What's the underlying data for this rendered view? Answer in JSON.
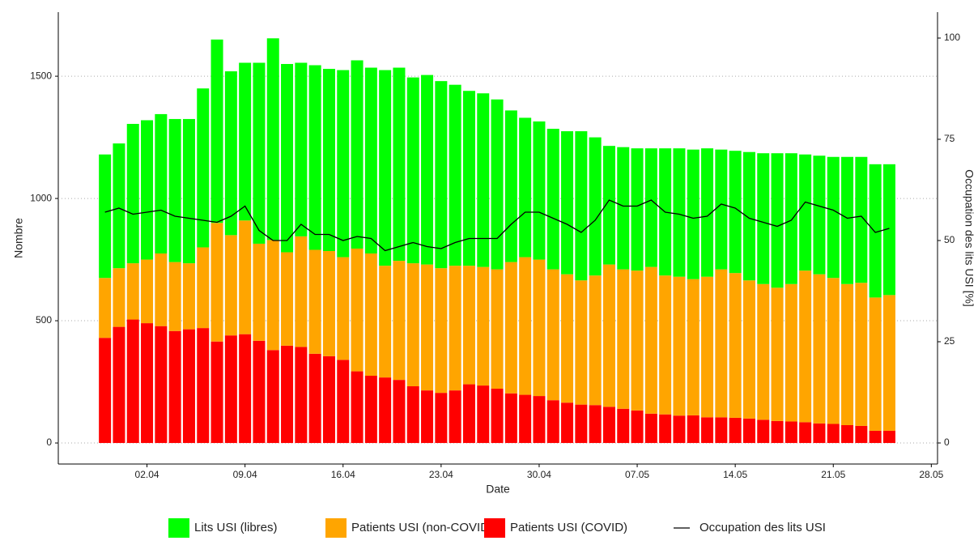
{
  "chart_data": {
    "type": "stacked-bar-line",
    "x_label": "Date",
    "y_label": "Nombre",
    "y2_label": "Occupation des lits USI [%]",
    "categories": [
      null,
      null,
      null,
      "02.04",
      null,
      null,
      null,
      null,
      null,
      null,
      "09.04",
      null,
      null,
      null,
      null,
      null,
      null,
      "16.04",
      null,
      null,
      null,
      null,
      null,
      null,
      "23.04",
      null,
      null,
      null,
      null,
      null,
      null,
      "30.04",
      null,
      null,
      null,
      null,
      null,
      null,
      "07.05",
      null,
      null,
      null,
      null,
      null,
      null,
      "14.05",
      null,
      null,
      null,
      null,
      null,
      null,
      "21.05",
      null,
      null,
      null,
      null,
      null,
      null,
      "28.05"
    ],
    "series": [
      {
        "name": "Lits USI (libres)",
        "color": "#00ff00",
        "values": [
          505,
          510,
          570,
          570,
          570,
          585,
          590,
          650,
          750,
          670,
          645,
          740,
          825,
          770,
          710,
          755,
          745,
          765,
          770,
          760,
          800,
          790,
          760,
          775,
          765,
          740,
          715,
          710,
          695,
          620,
          570,
          565,
          575,
          585,
          610,
          565,
          485,
          500,
          500,
          485,
          520,
          525,
          530,
          525,
          490,
          500,
          525,
          535,
          550,
          535,
          475,
          485,
          495,
          520,
          515,
          545,
          535,
          null,
          null,
          null
        ]
      },
      {
        "name": "Patients USI (non-COVID)",
        "color": "#ffa500",
        "values": [
          245,
          240,
          230,
          260,
          297,
          282,
          270,
          330,
          485,
          410,
          465,
          397,
          450,
          382,
          452,
          425,
          430,
          420,
          502,
          500,
          457,
          487,
          503,
          515,
          510,
          510,
          485,
          485,
          488,
          537,
          563,
          558,
          535,
          525,
          508,
          530,
          582,
          570,
          572,
          600,
          568,
          568,
          557,
          575,
          605,
          592,
          565,
          555,
          545,
          562,
          620,
          610,
          597,
          577,
          585,
          545,
          555,
          null,
          null,
          null
        ]
      },
      {
        "name": "Patients USI (COVID)",
        "color": "#ff0000",
        "values": [
          430,
          475,
          505,
          490,
          478,
          458,
          465,
          470,
          415,
          440,
          445,
          418,
          380,
          398,
          393,
          365,
          355,
          340,
          293,
          275,
          268,
          258,
          232,
          215,
          205,
          215,
          240,
          235,
          222,
          203,
          197,
          192,
          175,
          165,
          157,
          155,
          148,
          140,
          133,
          120,
          117,
          112,
          113,
          105,
          105,
          103,
          100,
          95,
          90,
          88,
          85,
          80,
          78,
          73,
          70,
          50,
          50,
          null,
          null,
          null
        ]
      },
      {
        "name": "Occupation des lits USI",
        "color": "#000000",
        "axis": "y2",
        "values": [
          57,
          58,
          56.5,
          57,
          57.5,
          56,
          55.5,
          55,
          54.5,
          56,
          58.5,
          52.5,
          50,
          50,
          54,
          51.5,
          51.5,
          50,
          51,
          50.5,
          47.5,
          48.5,
          49.5,
          48.5,
          48,
          49.5,
          50.5,
          50.5,
          50.5,
          54,
          57,
          57,
          55.5,
          54,
          52,
          55,
          60,
          58.5,
          58.5,
          60,
          57,
          56.5,
          55.5,
          56,
          59,
          58,
          55.5,
          54.5,
          53.5,
          55,
          59.5,
          58.5,
          57.5,
          55.5,
          56,
          52,
          53,
          null,
          null,
          null
        ]
      }
    ],
    "ylim": [
      -86,
      1762
    ],
    "yticks": [
      0,
      500,
      1000,
      1500
    ],
    "y2lim": [
      -5.2,
      106.4
    ],
    "y2ticks": [
      0,
      25,
      50,
      75,
      100
    ],
    "grid": true
  }
}
